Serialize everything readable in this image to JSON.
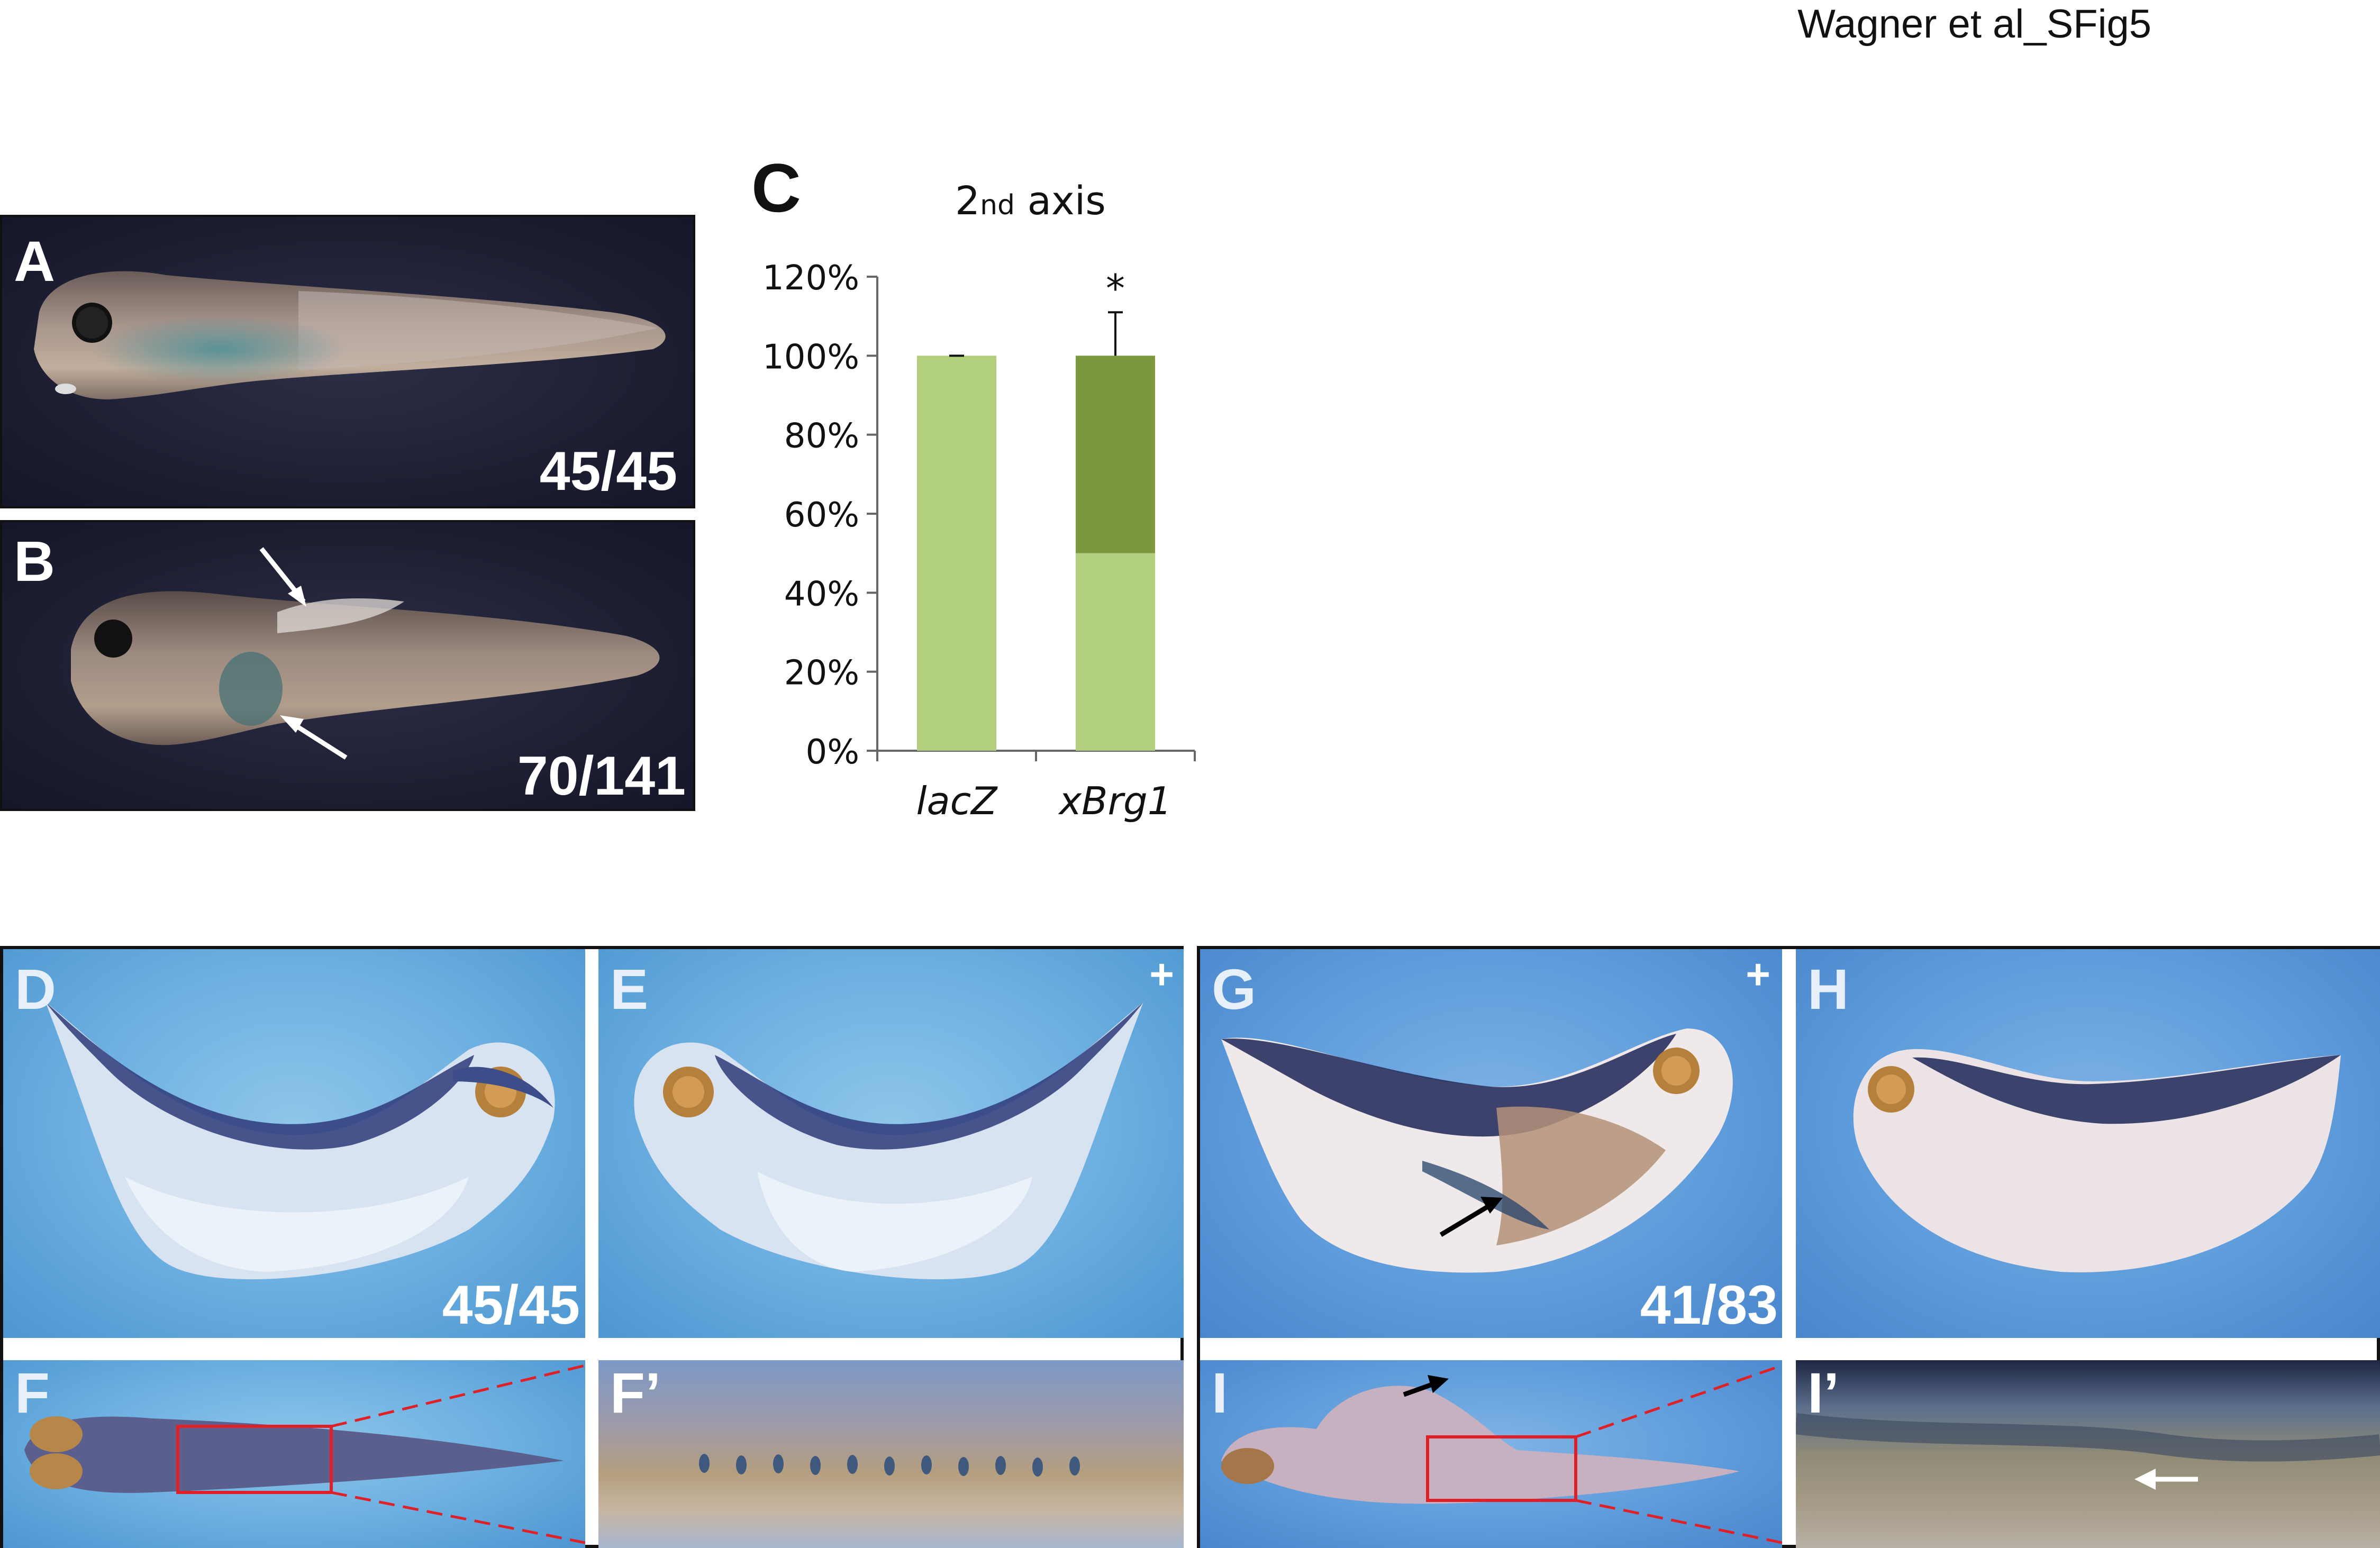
{
  "figure_title": "Wagner et al_SFig5",
  "panels": {
    "A": {
      "letter": "A",
      "count": "45/45"
    },
    "B": {
      "letter": "B",
      "count": "70/141"
    },
    "C": {
      "letter": "C"
    },
    "D": {
      "letter": "D",
      "count": "45/45"
    },
    "E": {
      "letter": "E",
      "plus": "+"
    },
    "F": {
      "letter": "F"
    },
    "F_prime": {
      "letter": "F’"
    },
    "G": {
      "letter": "G",
      "plus": "+",
      "count": "41/83"
    },
    "H": {
      "letter": "H"
    },
    "I": {
      "letter": "I"
    },
    "I_prime": {
      "letter": "I’"
    }
  },
  "chart_data": {
    "type": "bar",
    "title_main": "2",
    "title_sub": "nd",
    "title_rest": " axis",
    "categories": [
      "lacZ",
      "xBrg1"
    ],
    "series": [
      {
        "values": [
          100,
          50
        ],
        "color": "#b2cf7d"
      },
      {
        "values": [
          0,
          50
        ],
        "color": "#7b983d"
      }
    ],
    "error_bars": [
      0,
      11
    ],
    "significance": [
      "",
      "*"
    ],
    "ylim": [
      0,
      120
    ],
    "yticks": [
      "0%",
      "20%",
      "40%",
      "60%",
      "80%",
      "100%",
      "120%"
    ],
    "stacked": true,
    "grid": false
  },
  "colors": {
    "photo_dark_bg": "#1e1f33",
    "photo_blue_bg": "#6aaee0",
    "zoom_box": "#e01f26",
    "arrow_white": "#ffffff",
    "arrow_black": "#000000"
  }
}
